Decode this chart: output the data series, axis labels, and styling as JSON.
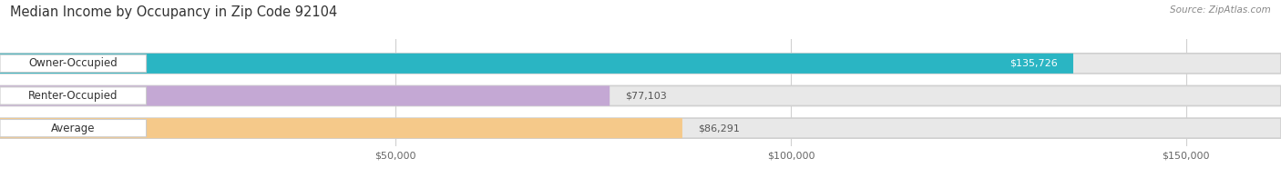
{
  "title": "Median Income by Occupancy in Zip Code 92104",
  "source": "Source: ZipAtlas.com",
  "categories": [
    "Owner-Occupied",
    "Renter-Occupied",
    "Average"
  ],
  "values": [
    135726,
    77103,
    86291
  ],
  "bar_colors": [
    "#2ab5c3",
    "#c4a8d4",
    "#f5c98a"
  ],
  "bar_bg_color": "#e8e8e8",
  "label_bg_color": "#ffffff",
  "value_labels": [
    "$135,726",
    "$77,103",
    "$86,291"
  ],
  "xlim": [
    0,
    162000
  ],
  "xticks": [
    50000,
    100000,
    150000
  ],
  "xtick_labels": [
    "$50,000",
    "$100,000",
    "$150,000"
  ],
  "figsize": [
    14.06,
    1.96
  ],
  "dpi": 100,
  "background_color": "#ffffff",
  "title_fontsize": 10.5,
  "source_fontsize": 7.5,
  "label_fontsize": 8.5,
  "value_fontsize": 8,
  "tick_fontsize": 8
}
